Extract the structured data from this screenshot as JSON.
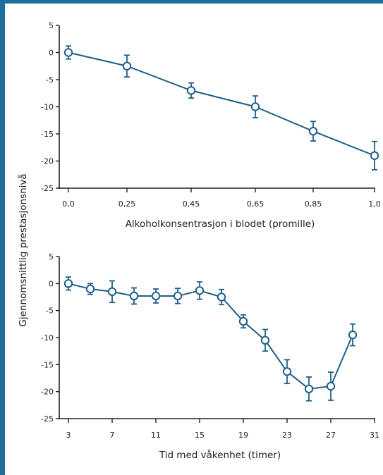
{
  "colors": {
    "frame": "#1f6f9b",
    "series": "#1f5f8b",
    "axis": "#222222"
  },
  "shared_ylabel": "Gjennomsnittlig prestasjonsnivå",
  "chart_data": [
    {
      "type": "line",
      "xlabel": "Alkoholkonsentrasjon i blodet (promille)",
      "ylabel": "Gjennomsnittlig prestasjonsnivå",
      "xlim": [
        0,
        1
      ],
      "ylim": [
        -25,
        5
      ],
      "x_ticks": [
        "0,0",
        "0,25",
        "0,45",
        "0,65",
        "0,85",
        "1,0"
      ],
      "y_ticks": [
        "5",
        "0",
        "-5",
        "-10",
        "-15",
        "-20",
        "-25"
      ],
      "series": [
        {
          "values": [
            0,
            -2.5,
            -7,
            -10,
            -14.5,
            -19
          ],
          "error": [
            1.2,
            2,
            1.4,
            2,
            1.8,
            2.6
          ]
        }
      ]
    },
    {
      "type": "line",
      "xlabel": "Tid med våkenhet (timer)",
      "ylabel": "Gjennomsnittlig prestasjonsnivå",
      "xlim": [
        3,
        31
      ],
      "ylim": [
        -25,
        5
      ],
      "x_ticks": [
        "3",
        "7",
        "11",
        "15",
        "19",
        "23",
        "27",
        "31"
      ],
      "y_ticks": [
        "5",
        "0",
        "-5",
        "-10",
        "-15",
        "-20",
        "-25"
      ],
      "series": [
        {
          "x": [
            3,
            5,
            7,
            9,
            11,
            13,
            15,
            17,
            19,
            21,
            23,
            25,
            27,
            29
          ],
          "values": [
            0,
            -1,
            -1.5,
            -2.3,
            -2.3,
            -2.3,
            -1.3,
            -2.5,
            -7,
            -10.5,
            -16.3,
            -19.5,
            -19,
            -9.5
          ],
          "error": [
            1.2,
            1,
            2,
            1.5,
            1.3,
            1.4,
            1.6,
            1.4,
            1.2,
            2,
            2.2,
            2.2,
            2.6,
            2
          ]
        }
      ]
    }
  ]
}
